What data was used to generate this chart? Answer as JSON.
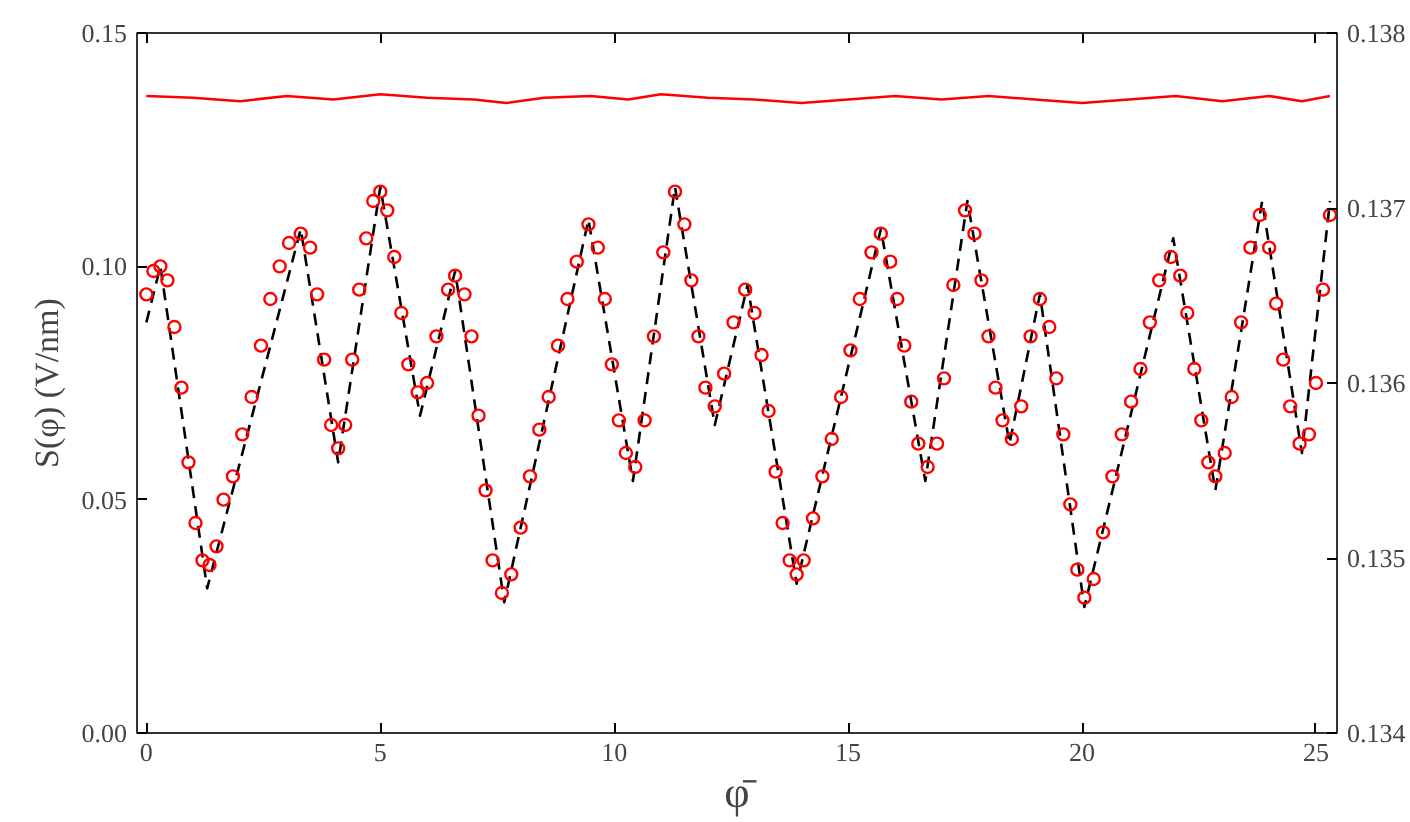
{
  "chart_data": {
    "type": "scatter",
    "xlabel": "φ̄",
    "ylabel": "S(φ) (V/nm)",
    "xlim": [
      -0.2,
      25.45
    ],
    "ylim": [
      0.0,
      0.15
    ],
    "y2lim": [
      0.134,
      0.138
    ],
    "xticks": [
      0,
      5,
      10,
      15,
      20,
      25
    ],
    "yticks": [
      {
        "value": 0.0,
        "label": "0.00"
      },
      {
        "value": 0.05,
        "label": "0.05"
      },
      {
        "value": 0.1,
        "label": "0.10"
      },
      {
        "value": 0.15,
        "label": "0.15"
      }
    ],
    "y2ticks": [
      0.134,
      0.135,
      0.136,
      0.137,
      0.138
    ],
    "grid": false,
    "series": [
      {
        "type": "line",
        "line_style": "dashed",
        "marker": "none",
        "color": "#000000",
        "x": [
          0,
          0.15,
          0.3,
          0.8,
          1.3,
          2.3,
          3.3,
          3.7,
          4.1,
          4.55,
          5.0,
          5.425,
          5.85,
          6.225,
          6.6,
          7.125,
          7.65,
          8.55,
          9.45,
          9.925,
          10.4,
          10.85,
          11.3,
          11.725,
          12.15,
          12.5,
          12.85,
          13.375,
          13.9,
          14.8,
          15.7,
          16.175,
          16.65,
          17.1,
          17.55,
          18.0,
          18.45,
          18.775,
          19.1,
          19.575,
          20.05,
          21.0,
          21.95,
          22.4,
          22.85,
          23.35,
          23.85,
          24.275,
          24.7,
          25.0,
          25.3
        ],
        "values": [
          0.088,
          0.094,
          0.1,
          0.0655,
          0.031,
          0.0695,
          0.108,
          0.083,
          0.058,
          0.0875,
          0.117,
          0.0925,
          0.068,
          0.0835,
          0.099,
          0.0635,
          0.028,
          0.069,
          0.11,
          0.082,
          0.054,
          0.0855,
          0.117,
          0.0915,
          0.066,
          0.081,
          0.096,
          0.064,
          0.032,
          0.07,
          0.108,
          0.081,
          0.054,
          0.084,
          0.114,
          0.088,
          0.062,
          0.078,
          0.094,
          0.0605,
          0.027,
          0.0665,
          0.106,
          0.079,
          0.052,
          0.083,
          0.114,
          0.087,
          0.06,
          0.087,
          0.114
        ]
      },
      {
        "marker": "circle",
        "color": "#ff0000",
        "x": [
          0,
          0.15,
          0.3,
          0.45,
          0.6,
          0.75,
          0.9,
          1.05,
          1.2,
          1.35,
          1.5,
          1.65,
          1.85,
          2.05,
          2.25,
          2.45,
          2.65,
          2.85,
          3.05,
          3.3,
          3.5,
          3.65,
          3.8,
          3.95,
          4.1,
          4.25,
          4.4,
          4.55,
          4.7,
          4.85,
          5.0,
          5.15,
          5.3,
          5.45,
          5.6,
          5.8,
          6.0,
          6.2,
          6.45,
          6.6,
          6.8,
          6.95,
          7.1,
          7.25,
          7.4,
          7.6,
          7.8,
          8.0,
          8.2,
          8.4,
          8.6,
          8.8,
          9.0,
          9.2,
          9.45,
          9.65,
          9.8,
          9.95,
          10.1,
          10.25,
          10.45,
          10.65,
          10.85,
          11.05,
          11.3,
          11.5,
          11.65,
          11.8,
          11.95,
          12.15,
          12.35,
          12.55,
          12.8,
          13.0,
          13.15,
          13.3,
          13.45,
          13.6,
          13.75,
          13.9,
          14.05,
          14.25,
          14.45,
          14.65,
          14.85,
          15.05,
          15.25,
          15.5,
          15.7,
          15.9,
          16.05,
          16.2,
          16.35,
          16.5,
          16.7,
          16.9,
          17.05,
          17.25,
          17.5,
          17.7,
          17.85,
          18.0,
          18.15,
          18.3,
          18.5,
          18.7,
          18.9,
          19.1,
          19.3,
          19.45,
          19.6,
          19.75,
          19.9,
          20.05,
          20.25,
          20.45,
          20.65,
          20.85,
          21.05,
          21.25,
          21.45,
          21.65,
          21.9,
          22.1,
          22.25,
          22.4,
          22.55,
          22.7,
          22.85,
          23.05,
          23.2,
          23.4,
          23.6,
          23.8,
          24.0,
          24.15,
          24.3,
          24.45,
          24.65,
          24.85,
          25.0,
          25.15,
          25.3
        ],
        "values": [
          0.094,
          0.099,
          0.1,
          0.097,
          0.087,
          0.074,
          0.058,
          0.045,
          0.037,
          0.036,
          0.04,
          0.05,
          0.055,
          0.064,
          0.072,
          0.083,
          0.093,
          0.1,
          0.105,
          0.107,
          0.104,
          0.094,
          0.08,
          0.066,
          0.061,
          0.066,
          0.08,
          0.095,
          0.106,
          0.114,
          0.116,
          0.112,
          0.102,
          0.09,
          0.079,
          0.073,
          0.075,
          0.085,
          0.095,
          0.098,
          0.094,
          0.085,
          0.068,
          0.052,
          0.037,
          0.03,
          0.034,
          0.044,
          0.055,
          0.065,
          0.072,
          0.083,
          0.093,
          0.101,
          0.109,
          0.104,
          0.093,
          0.079,
          0.067,
          0.06,
          0.057,
          0.067,
          0.085,
          0.103,
          0.116,
          0.109,
          0.097,
          0.085,
          0.074,
          0.07,
          0.077,
          0.088,
          0.095,
          0.09,
          0.081,
          0.069,
          0.056,
          0.045,
          0.037,
          0.034,
          0.037,
          0.046,
          0.055,
          0.063,
          0.072,
          0.082,
          0.093,
          0.103,
          0.107,
          0.101,
          0.093,
          0.083,
          0.071,
          0.062,
          0.057,
          0.062,
          0.076,
          0.096,
          0.112,
          0.107,
          0.097,
          0.085,
          0.074,
          0.067,
          0.063,
          0.07,
          0.085,
          0.093,
          0.087,
          0.076,
          0.064,
          0.049,
          0.035,
          0.029,
          0.033,
          0.043,
          0.055,
          0.064,
          0.071,
          0.078,
          0.088,
          0.097,
          0.102,
          0.098,
          0.09,
          0.078,
          0.067,
          0.058,
          0.055,
          0.06,
          0.072,
          0.088,
          0.104,
          0.111,
          0.104,
          0.092,
          0.08,
          0.07,
          0.062,
          0.064,
          0.075,
          0.095,
          0.111
        ]
      },
      {
        "type": "line",
        "axis": "y2",
        "line_style": "solid",
        "marker": "none",
        "color": "#ff0000",
        "x": [
          0,
          1,
          2,
          3,
          4,
          5,
          6,
          7,
          7.7,
          8.5,
          9.5,
          10.3,
          11,
          12,
          13,
          14,
          15,
          16,
          17,
          18,
          19,
          20,
          21,
          22,
          23,
          24,
          24.7,
          25.3
        ],
        "values": [
          0.13764,
          0.13763,
          0.13761,
          0.13764,
          0.13762,
          0.13765,
          0.13763,
          0.13762,
          0.1376,
          0.13763,
          0.13764,
          0.13762,
          0.13765,
          0.13763,
          0.13762,
          0.1376,
          0.13762,
          0.13764,
          0.13762,
          0.13764,
          0.13762,
          0.1376,
          0.13762,
          0.13764,
          0.13761,
          0.13764,
          0.13761,
          0.13764
        ]
      }
    ]
  }
}
